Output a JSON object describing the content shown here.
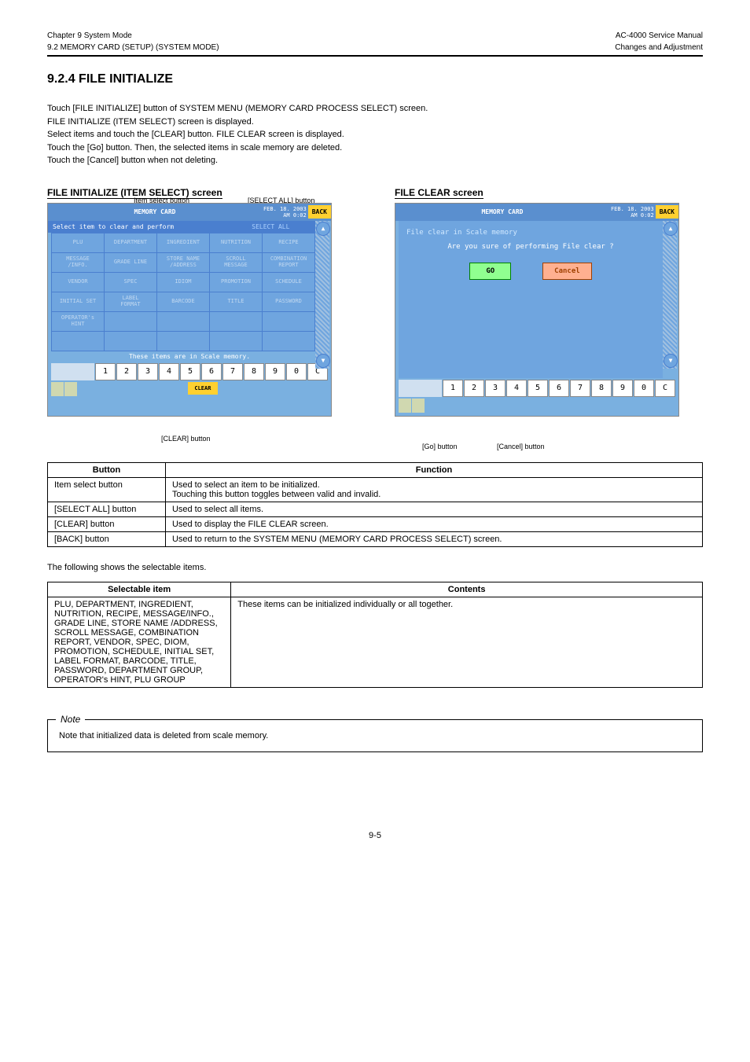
{
  "header": {
    "left_top": "Chapter 9 System Mode",
    "left_bottom": "9.2 MEMORY CARD (SETUP) (SYSTEM MODE)",
    "right_top": "AC-4000 Service Manual",
    "right_bottom": "Changes and Adjustment"
  },
  "section": {
    "number": "9.2.4",
    "title": "FILE INITIALIZE"
  },
  "instructions": [
    "Touch [FILE INITIALIZE] button of SYSTEM MENU (MEMORY CARD PROCESS SELECT) screen.",
    "FILE INITIALIZE (ITEM SELECT) screen is displayed.",
    "Select items and touch the [CLEAR] button. FILE CLEAR screen is displayed.",
    "Touch the [Go] button. Then, the selected items in scale memory are deleted.",
    "Touch the [Cancel] button when not deleting."
  ],
  "screens": {
    "a": {
      "caption": "FILE INITIALIZE (ITEM SELECT) screen",
      "callouts": [
        "Item select button",
        "[SELECT ALL] button",
        "[CLEAR] button"
      ],
      "title": "MEMORY CARD",
      "date": "FEB. 18. 2003\nAM 0:02",
      "back": "BACK",
      "subhead": "Select item to clear and perform",
      "select_all": "SELECT ALL",
      "cells": [
        "PLU",
        "DEPARTMENT",
        "INGREDIENT",
        "NUTRITION",
        "RECIPE",
        "MESSAGE\n/INFO.",
        "GRADE LINE",
        "STORE NAME\n/ADDRESS",
        "SCROLL\nMESSAGE",
        "COMBINATION\nREPORT",
        "VENDOR",
        "SPEC",
        "IDIOM",
        "PROMOTION",
        "SCHEDULE",
        "INITIAL SET",
        "LABEL\nFORMAT",
        "BARCODE",
        "TITLE",
        "PASSWORD",
        "OPERATOR's\nHINT",
        "",
        "",
        "",
        "",
        "",
        "",
        "",
        "",
        ""
      ],
      "footer": "These items are in Scale memory.",
      "numkeys": [
        "1",
        "2",
        "3",
        "4",
        "5",
        "6",
        "7",
        "8",
        "9",
        "0",
        "C"
      ],
      "clear": "CLEAR"
    },
    "b": {
      "caption": "FILE CLEAR screen",
      "callouts": [
        "[Go] button",
        "[Cancel] button"
      ],
      "title": "MEMORY CARD",
      "date": "FEB. 18. 2003\nAM 0:02",
      "back": "BACK",
      "msg1": "File clear in Scale memory",
      "msg2": "Are you sure of performing File clear ?",
      "go": "GO",
      "cancel": "Cancel",
      "numkeys": [
        "1",
        "2",
        "3",
        "4",
        "5",
        "6",
        "7",
        "8",
        "9",
        "0",
        "C"
      ]
    }
  },
  "table1": {
    "head": [
      "Button",
      "Function"
    ],
    "rows": [
      [
        "Item select button",
        "Used to select an item to be initialized.\nTouching this button toggles between valid and invalid."
      ],
      [
        "[SELECT ALL] button",
        "Used to select all items."
      ],
      [
        "[CLEAR] button",
        "Used to display the FILE CLEAR screen."
      ],
      [
        "[BACK] button",
        "Used to return to the SYSTEM MENU (MEMORY CARD PROCESS SELECT) screen."
      ]
    ]
  },
  "table2": {
    "caption": "The following shows the selectable items.",
    "head": [
      "Selectable item",
      "Contents"
    ],
    "rows": [
      [
        "PLU, DEPARTMENT, INGREDIENT, NUTRITION, RECIPE, MESSAGE/INFO., GRADE LINE, STORE NAME /ADDRESS, SCROLL MESSAGE, COMBINATION REPORT, VENDOR, SPEC, DIOM, PROMOTION, SCHEDULE, INITIAL SET, LABEL FORMAT, BARCODE, TITLE, PASSWORD, DEPARTMENT GROUP, OPERATOR's HINT, PLU GROUP",
        "These items can be initialized individually or all together."
      ]
    ]
  },
  "note": {
    "label": "Note",
    "text": "Note that initialized data is deleted from scale memory."
  },
  "pagenum": "9-5"
}
